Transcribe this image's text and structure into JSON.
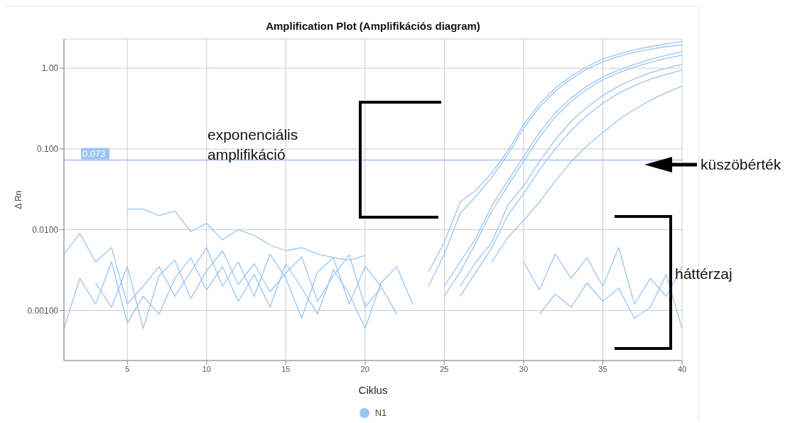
{
  "chart_data": {
    "type": "line",
    "title": "Amplification Plot (Amplifikációs diagram)",
    "xlabel": "Ciklus",
    "ylabel": "Δ Rn",
    "log": "y",
    "grid": true,
    "legend": "bottom",
    "marker": "none",
    "line_style": "solid",
    "xlim": [
      1,
      40
    ],
    "xticks": [
      5,
      10,
      15,
      20,
      25,
      30,
      35,
      40
    ],
    "ylim": [
      0.00024,
      2.3
    ],
    "yticks": [
      {
        "value": 0.001,
        "label": "0.00100"
      },
      {
        "value": 0.01,
        "label": "0.0100"
      },
      {
        "value": 0.1,
        "label": "0.100"
      },
      {
        "value": 1,
        "label": "1.00"
      }
    ],
    "ref_lines": [
      {
        "axis": "y",
        "value": 0.073,
        "label": "0.073",
        "color": "#99c4f4"
      }
    ],
    "annotations": [
      "exponenciális amplifikáció",
      "küszöbérték",
      "háttérzaj"
    ],
    "series": [
      {
        "name": "N1",
        "color": "#99c4f4",
        "x": [
          24,
          25,
          26,
          27,
          28,
          29,
          30,
          31,
          32,
          33,
          34,
          35,
          36,
          37,
          38,
          39,
          40
        ],
        "values": [
          0.003,
          0.007,
          0.022,
          0.031,
          0.051,
          0.094,
          0.2,
          0.36,
          0.57,
          0.8,
          1.05,
          1.3,
          1.5,
          1.7,
          1.85,
          2.0,
          2.15
        ]
      },
      {
        "color": "#99c4f4",
        "x": [
          24,
          25,
          26,
          27,
          28,
          29,
          30,
          31,
          32,
          33,
          34,
          35,
          36,
          37,
          38,
          39,
          40
        ],
        "values": [
          0.002,
          0.005,
          0.016,
          0.026,
          0.045,
          0.085,
          0.18,
          0.33,
          0.52,
          0.74,
          0.98,
          1.2,
          1.4,
          1.58,
          1.72,
          1.85,
          1.95
        ]
      },
      {
        "color": "#99c4f4",
        "x": [
          25,
          26,
          27,
          28,
          29,
          30,
          31,
          32,
          33,
          34,
          35,
          36,
          37,
          38,
          39,
          40
        ],
        "values": [
          0.002,
          0.004,
          0.008,
          0.02,
          0.04,
          0.08,
          0.16,
          0.28,
          0.43,
          0.6,
          0.78,
          0.95,
          1.12,
          1.28,
          1.45,
          1.6
        ]
      },
      {
        "color": "#99c4f4",
        "x": [
          25,
          26,
          27,
          28,
          29,
          30,
          31,
          32,
          33,
          34,
          35,
          36,
          37,
          38,
          39,
          40
        ],
        "values": [
          0.0015,
          0.003,
          0.007,
          0.017,
          0.035,
          0.07,
          0.14,
          0.25,
          0.39,
          0.55,
          0.72,
          0.88,
          1.03,
          1.18,
          1.33,
          1.45
        ]
      },
      {
        "color": "#99c4f4",
        "x": [
          26,
          27,
          28,
          29,
          30,
          31,
          32,
          33,
          34,
          35,
          36,
          37,
          38,
          39,
          40
        ],
        "values": [
          0.002,
          0.004,
          0.007,
          0.02,
          0.035,
          0.07,
          0.13,
          0.22,
          0.33,
          0.46,
          0.6,
          0.74,
          0.88,
          1.0,
          1.12
        ]
      },
      {
        "color": "#99c4f4",
        "x": [
          26,
          27,
          28,
          29,
          30,
          31,
          32,
          33,
          34,
          35,
          36,
          37,
          38,
          39,
          40
        ],
        "values": [
          0.0015,
          0.003,
          0.006,
          0.015,
          0.028,
          0.055,
          0.1,
          0.17,
          0.26,
          0.37,
          0.49,
          0.61,
          0.73,
          0.84,
          0.95
        ]
      },
      {
        "color": "#99c4f4",
        "x": [
          28,
          29,
          30,
          31,
          32,
          33,
          34,
          35,
          36,
          37,
          38,
          39,
          40
        ],
        "values": [
          0.004,
          0.008,
          0.013,
          0.022,
          0.04,
          0.07,
          0.11,
          0.16,
          0.23,
          0.31,
          0.4,
          0.5,
          0.6
        ]
      },
      {
        "color": "#99c4f4",
        "x": [
          5,
          6,
          7,
          8,
          9,
          10,
          11,
          12,
          13,
          14,
          15,
          16,
          17,
          18,
          19,
          20
        ],
        "values": [
          0.018,
          0.018,
          0.015,
          0.017,
          0.0095,
          0.012,
          0.0075,
          0.01,
          0.0085,
          0.0065,
          0.0055,
          0.006,
          0.005,
          0.0045,
          0.0042,
          0.0048
        ]
      },
      {
        "color": "#99c4f4",
        "x": [
          1,
          2,
          3,
          4,
          5,
          6,
          7,
          8,
          9,
          10,
          11,
          12,
          13,
          14,
          15,
          16,
          17,
          18,
          19,
          20,
          21,
          22
        ],
        "values": [
          0.005,
          0.009,
          0.004,
          0.006,
          0.0012,
          0.002,
          0.0035,
          0.0015,
          0.003,
          0.006,
          0.002,
          0.004,
          0.0015,
          0.005,
          0.0025,
          0.0008,
          0.003,
          0.0045,
          0.0012,
          0.0035,
          0.002,
          0.0009
        ]
      },
      {
        "color": "#99c4f4",
        "x": [
          1,
          2,
          3,
          4,
          5,
          6,
          7,
          8,
          9,
          10,
          11,
          12,
          13,
          14,
          15,
          16,
          17,
          18,
          19,
          20,
          21,
          22,
          23
        ],
        "values": [
          0.0006,
          0.0025,
          0.0012,
          0.004,
          0.0007,
          0.0015,
          0.0009,
          0.0025,
          0.0045,
          0.0018,
          0.0035,
          0.0013,
          0.0028,
          0.0011,
          0.0038,
          0.0019,
          0.0009,
          0.0032,
          0.0016,
          0.0006,
          0.0022,
          0.0035,
          0.0012
        ]
      },
      {
        "color": "#99c4f4",
        "x": [
          3,
          4,
          5,
          6,
          7,
          8,
          9,
          10,
          11,
          12,
          13,
          14,
          15,
          16,
          17,
          18,
          19,
          20,
          21
        ],
        "values": [
          0.0022,
          0.0011,
          0.0035,
          0.0006,
          0.0027,
          0.0042,
          0.0014,
          0.0031,
          0.0055,
          0.0021,
          0.0038,
          0.0017,
          0.0029,
          0.0046,
          0.0013,
          0.0027,
          0.0049,
          0.0011,
          0.0019
        ]
      },
      {
        "color": "#99c4f4",
        "x": [
          30,
          31,
          32,
          33,
          34,
          35,
          36,
          37,
          38,
          39,
          40
        ],
        "values": [
          0.004,
          0.0018,
          0.005,
          0.0025,
          0.0045,
          0.002,
          0.006,
          0.0012,
          0.0025,
          0.0015,
          0.0035
        ]
      },
      {
        "color": "#99c4f4",
        "x": [
          31,
          32,
          33,
          34,
          35,
          36,
          37,
          38,
          39,
          40
        ],
        "values": [
          0.0009,
          0.0016,
          0.0011,
          0.0022,
          0.0013,
          0.0019,
          0.0008,
          0.0011,
          0.0028,
          0.0006
        ]
      }
    ]
  }
}
